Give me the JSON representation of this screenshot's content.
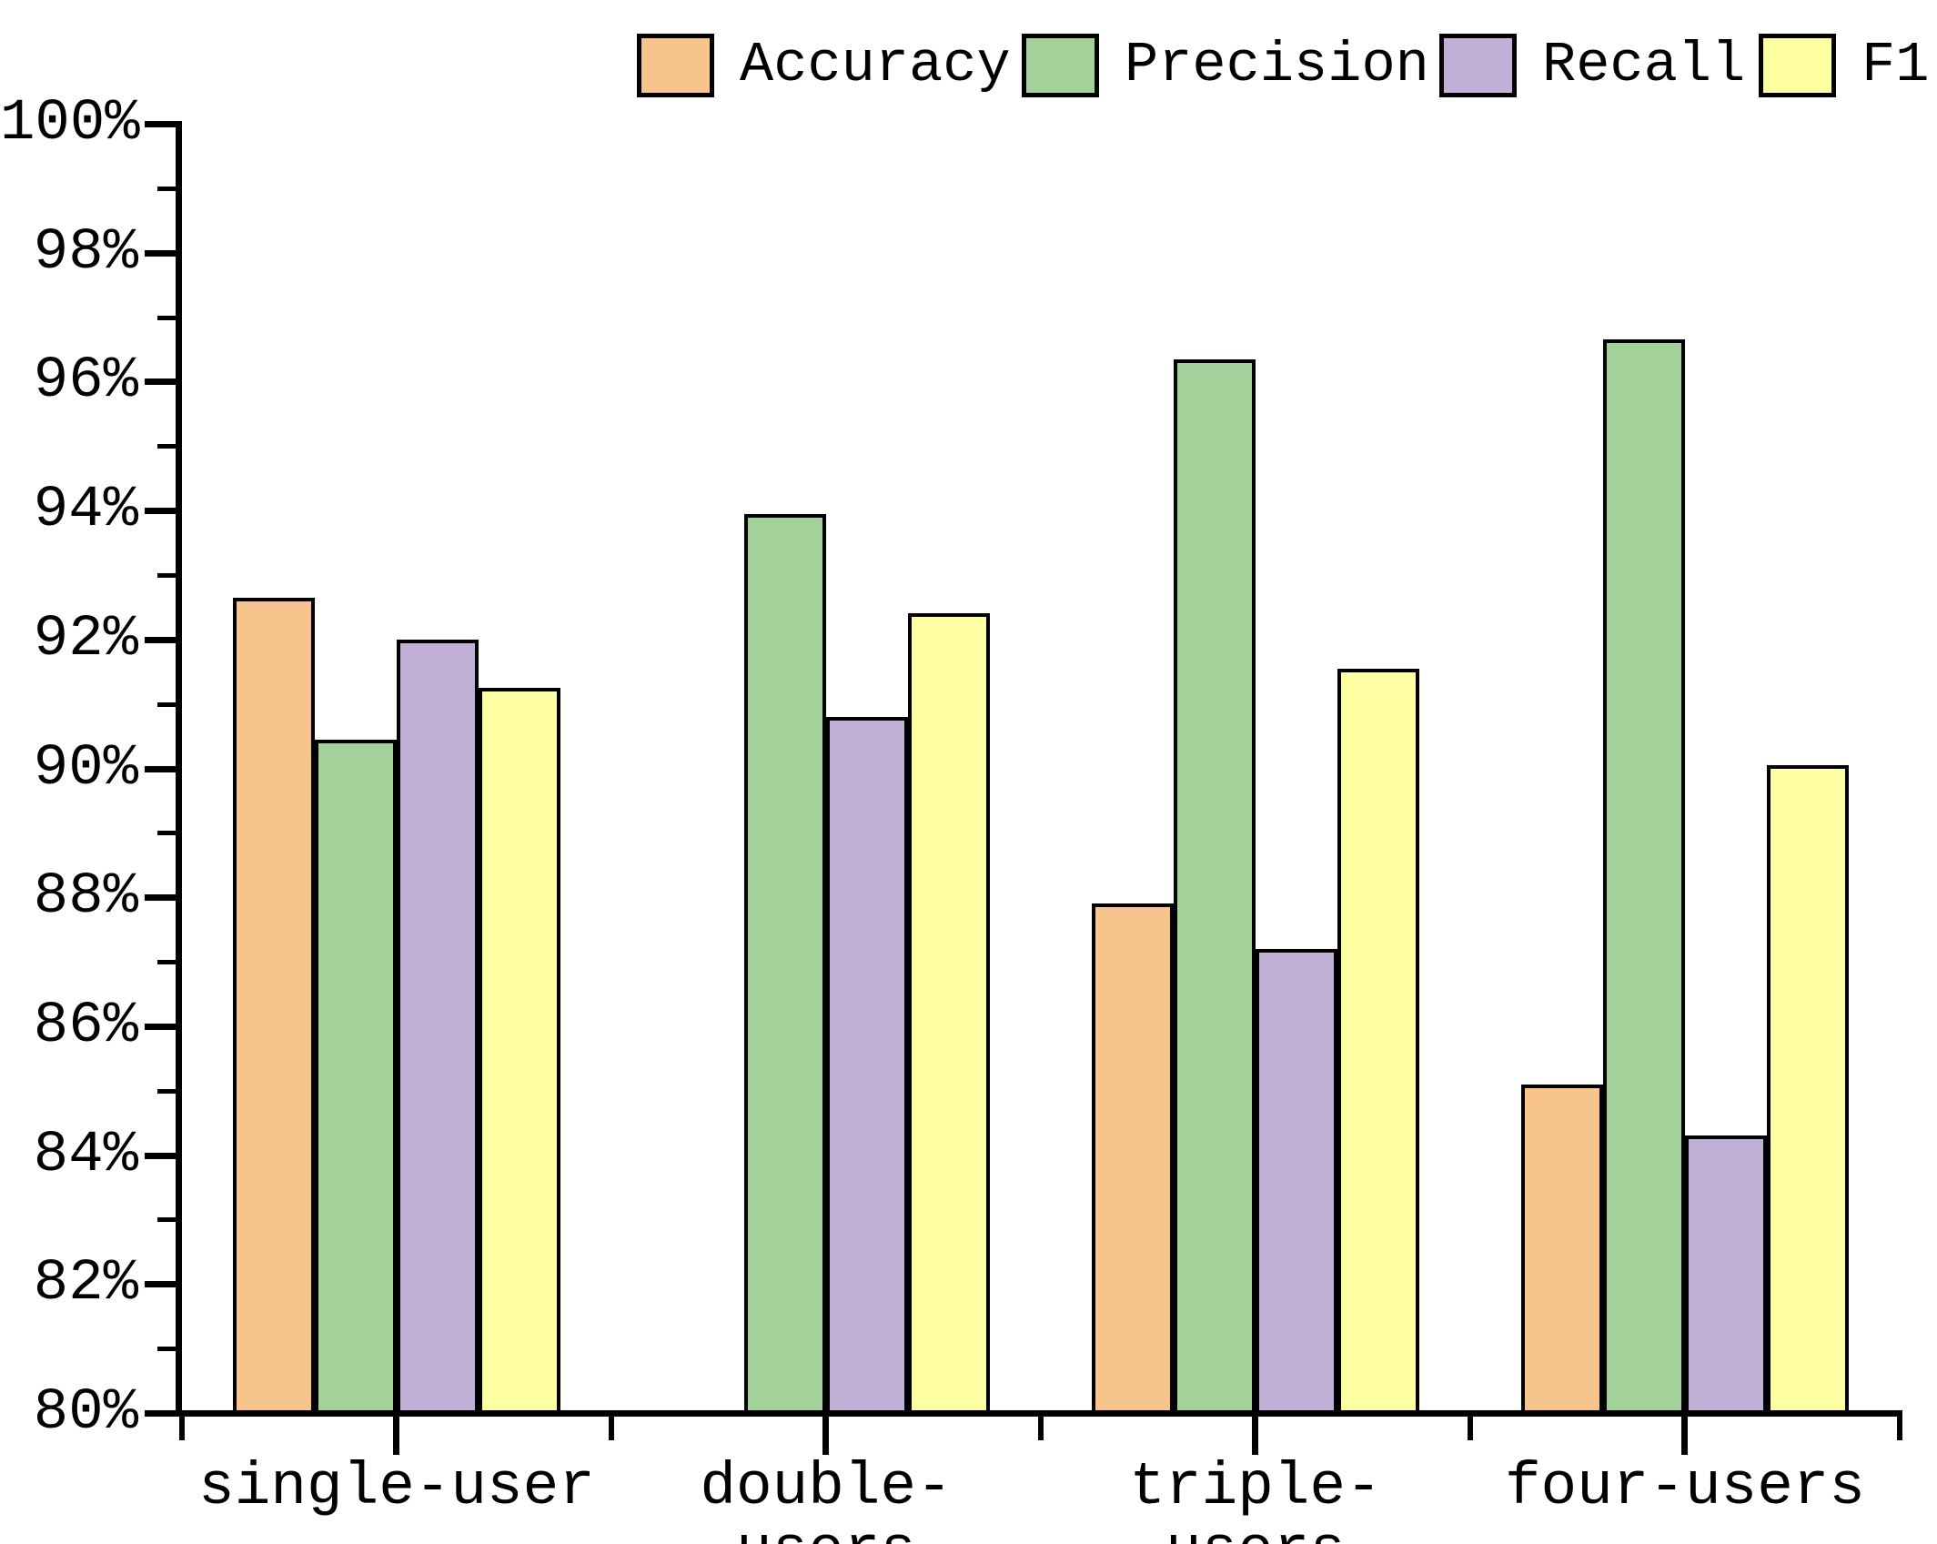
{
  "legend": [
    {
      "label": "Accuracy",
      "color": "#F8C48E"
    },
    {
      "label": "Precision",
      "color": "#A2D29A"
    },
    {
      "label": "Recall",
      "color": "#C1B0D5"
    },
    {
      "label": "F1",
      "color": "#FEFFA3"
    }
  ],
  "chart_data": {
    "type": "bar",
    "title": "",
    "xlabel": "",
    "ylabel": "",
    "categories": [
      "single-user",
      "double-users",
      "triple-users",
      "four-users"
    ],
    "series": [
      {
        "name": "Accuracy",
        "color": "#F8C48E",
        "values": [
          92.65,
          null,
          87.9,
          85.1
        ]
      },
      {
        "name": "Precision",
        "color": "#A2D29A",
        "values": [
          90.45,
          93.95,
          96.35,
          96.65
        ]
      },
      {
        "name": "Recall",
        "color": "#C1B0D5",
        "values": [
          92.0,
          90.8,
          87.2,
          84.3
        ]
      },
      {
        "name": "F1",
        "color": "#FEFFA3",
        "values": [
          91.25,
          92.4,
          91.55,
          90.05
        ]
      }
    ],
    "ylim": [
      80,
      100
    ],
    "y_major_step": 2,
    "y_minor_step": 1,
    "y_tick_labels": [
      "80%",
      "82%",
      "84%",
      "86%",
      "88%",
      "90%",
      "92%",
      "94%",
      "96%",
      "98%",
      "100%"
    ],
    "grid": false,
    "legend_position": "top",
    "bar_border_color": "#000000",
    "axis_color": "#000000",
    "text_color": "#000000",
    "note": "Accuracy bar absent for double-users"
  }
}
